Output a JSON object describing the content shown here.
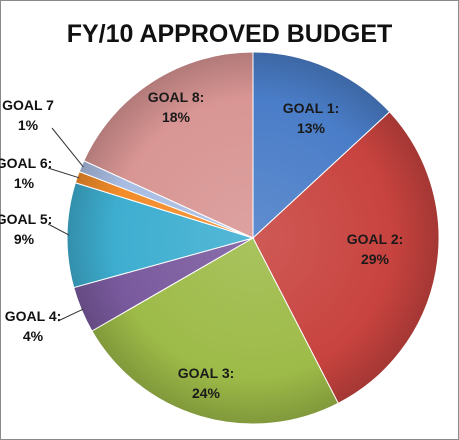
{
  "chart_data": {
    "type": "pie",
    "title": "FY/10  APPROVED BUDGET",
    "slices": [
      {
        "label": "GOAL 1:",
        "pct_text": "13%",
        "value": 13,
        "color": "#4a7dc8"
      },
      {
        "label": "GOAL 2:",
        "pct_text": "29%",
        "value": 29,
        "color": "#c8433f"
      },
      {
        "label": "GOAL 3:",
        "pct_text": "24%",
        "value": 24,
        "color": "#9dbb48"
      },
      {
        "label": "GOAL 4:",
        "pct_text": "4%",
        "value": 4,
        "color": "#7a5a9e"
      },
      {
        "label": "GOAL 5:",
        "pct_text": "9%",
        "value": 9,
        "color": "#3eaed0"
      },
      {
        "label": "GOAL 6:",
        "pct_text": "1%",
        "value": 1,
        "color": "#f38c2a"
      },
      {
        "label": "GOAL 7",
        "pct_text": "1%",
        "value": 1,
        "color": "#a9bde3"
      },
      {
        "label": "GOAL 8:",
        "pct_text": "18%",
        "value": 18,
        "color": "#d89593"
      }
    ],
    "label_placement": [
      "inside",
      "inside",
      "inside",
      "outside",
      "outside",
      "outside",
      "outside",
      "inside"
    ],
    "start_angle": "12 o'clock",
    "direction": "clockwise"
  }
}
